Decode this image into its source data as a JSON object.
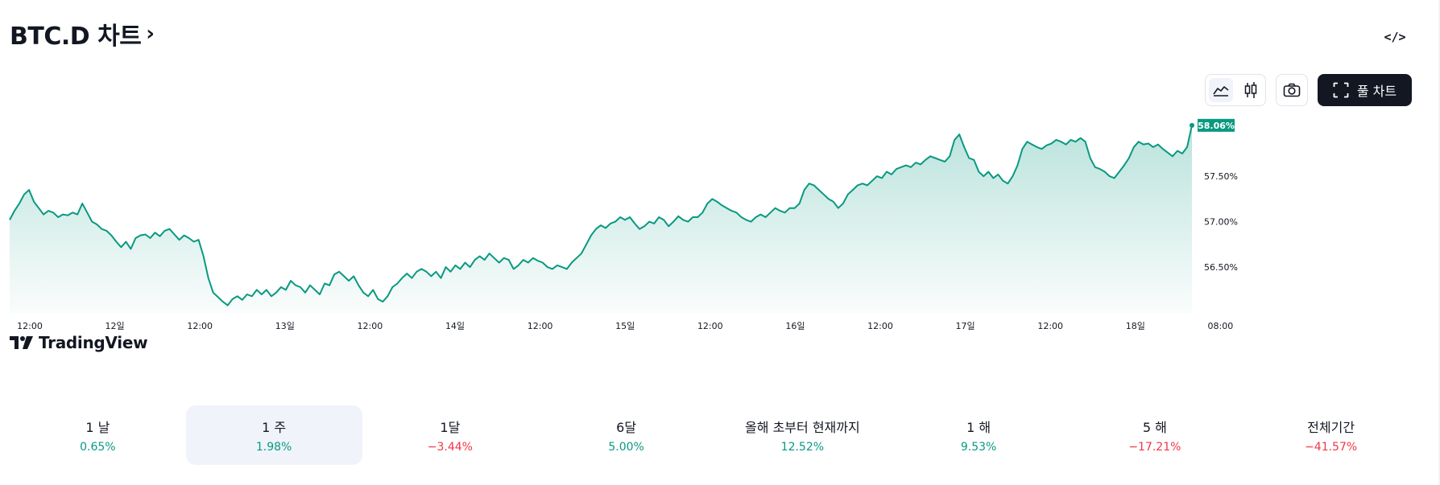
{
  "header": {
    "title": "BTC.D 차트",
    "title_chevron": "›",
    "embed_label": "</>"
  },
  "toolbar": {
    "chart_style_buttons": [
      {
        "icon": "area-chart-icon",
        "active": true
      },
      {
        "icon": "candlestick-chart-icon",
        "active": false
      }
    ],
    "snapshot_icon": "camera-icon",
    "full_chart_label": "풀 차트",
    "full_chart_icon": "fullscreen-icon"
  },
  "branding": {
    "logo_text": "TradingView"
  },
  "colors": {
    "line": "#089981",
    "area_top": "#089981",
    "positive": "#089981",
    "negative": "#f23645",
    "price_tag": "#089981"
  },
  "chart_data": {
    "type": "area",
    "x_tick_labels": [
      "12:00",
      "12일",
      "12:00",
      "13일",
      "12:00",
      "14일",
      "12:00",
      "15일",
      "12:00",
      "16일",
      "12:00",
      "17일",
      "12:00",
      "18일",
      "08:00"
    ],
    "y_tick_labels": [
      "57.50%",
      "57.00%",
      "56.50%"
    ],
    "y_ticks": [
      57.5,
      57.0,
      56.5
    ],
    "ylim": [
      56.05,
      58.2
    ],
    "last_value_label": "58.06%",
    "last_value": 58.06,
    "grid": false,
    "series": [
      {
        "values": [
          57.02,
          57.12,
          57.2,
          57.3,
          57.35,
          57.22,
          57.15,
          57.08,
          57.12,
          57.1,
          57.05,
          57.08,
          57.07,
          57.1,
          57.08,
          57.2,
          57.1,
          57.0,
          56.97,
          56.92,
          56.9,
          56.85,
          56.78,
          56.72,
          56.78,
          56.7,
          56.82,
          56.85,
          56.86,
          56.82,
          56.88,
          56.84,
          56.9,
          56.92,
          56.86,
          56.8,
          56.85,
          56.82,
          56.78,
          56.8,
          56.62,
          56.38,
          56.22,
          56.17,
          56.12,
          56.08,
          56.15,
          56.18,
          56.14,
          56.2,
          56.18,
          56.25,
          56.2,
          56.25,
          56.18,
          56.22,
          56.28,
          56.25,
          56.35,
          56.3,
          56.28,
          56.22,
          56.3,
          56.25,
          56.2,
          56.32,
          56.3,
          56.42,
          56.45,
          56.4,
          56.35,
          56.4,
          56.3,
          56.22,
          56.18,
          56.25,
          56.15,
          56.12,
          56.18,
          56.28,
          56.32,
          56.38,
          56.43,
          56.38,
          56.45,
          56.48,
          56.45,
          56.4,
          56.45,
          56.38,
          56.5,
          56.45,
          56.52,
          56.48,
          56.55,
          56.5,
          56.58,
          56.62,
          56.58,
          56.65,
          56.6,
          56.55,
          56.6,
          56.58,
          56.48,
          56.52,
          56.58,
          56.55,
          56.6,
          56.57,
          56.55,
          56.5,
          56.48,
          56.52,
          56.5,
          56.48,
          56.55,
          56.6,
          56.65,
          56.75,
          56.85,
          56.92,
          56.96,
          56.93,
          56.98,
          57.0,
          57.05,
          57.02,
          57.05,
          56.98,
          56.92,
          56.95,
          57.0,
          56.98,
          57.05,
          57.02,
          56.95,
          57.0,
          57.06,
          57.02,
          57.0,
          57.05,
          57.05,
          57.1,
          57.2,
          57.25,
          57.22,
          57.18,
          57.15,
          57.12,
          57.1,
          57.05,
          57.02,
          57.0,
          57.05,
          57.08,
          57.05,
          57.1,
          57.15,
          57.12,
          57.1,
          57.15,
          57.15,
          57.2,
          57.35,
          57.42,
          57.4,
          57.35,
          57.3,
          57.25,
          57.22,
          57.15,
          57.2,
          57.3,
          57.35,
          57.4,
          57.42,
          57.4,
          57.45,
          57.5,
          57.48,
          57.55,
          57.52,
          57.58,
          57.6,
          57.62,
          57.6,
          57.65,
          57.63,
          57.68,
          57.72,
          57.7,
          57.68,
          57.66,
          57.72,
          57.9,
          57.96,
          57.82,
          57.7,
          57.68,
          57.55,
          57.5,
          57.55,
          57.48,
          57.52,
          57.45,
          57.42,
          57.5,
          57.62,
          57.8,
          57.88,
          57.85,
          57.82,
          57.8,
          57.84,
          57.86,
          57.9,
          57.88,
          57.85,
          57.9,
          57.88,
          57.92,
          57.88,
          57.7,
          57.6,
          57.58,
          57.55,
          57.5,
          57.48,
          57.55,
          57.62,
          57.7,
          57.82,
          57.88,
          57.85,
          57.86,
          57.82,
          57.85,
          57.8,
          57.76,
          57.72,
          57.78,
          57.75,
          57.82,
          58.06
        ]
      }
    ]
  },
  "periods": [
    {
      "label": "1 날",
      "value": "0.65%",
      "dir": "pos",
      "active": false
    },
    {
      "label": "1 주",
      "value": "1.98%",
      "dir": "pos",
      "active": true
    },
    {
      "label": "1달",
      "value": "−3.44%",
      "dir": "neg",
      "active": false
    },
    {
      "label": "6달",
      "value": "5.00%",
      "dir": "pos",
      "active": false
    },
    {
      "label": "올해 초부터 현재까지",
      "value": "12.52%",
      "dir": "pos",
      "active": false
    },
    {
      "label": "1 해",
      "value": "9.53%",
      "dir": "pos",
      "active": false
    },
    {
      "label": "5 해",
      "value": "−17.21%",
      "dir": "neg",
      "active": false
    },
    {
      "label": "전체기간",
      "value": "−41.57%",
      "dir": "neg",
      "active": false
    }
  ]
}
